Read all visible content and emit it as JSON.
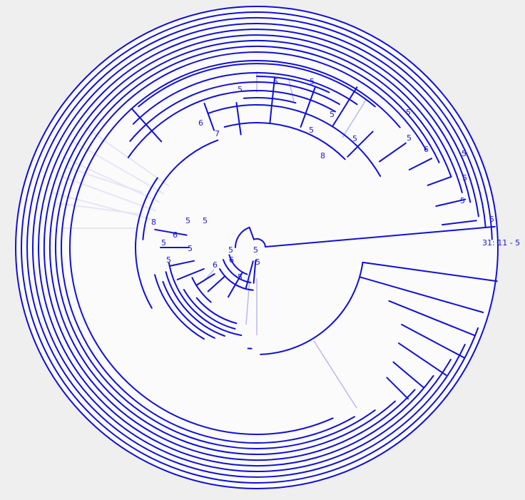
{
  "diagram": {
    "root_label": "31: 11 - 5",
    "colors": {
      "background": "#efefef",
      "disk": "#fbfbfc",
      "edge": "#1010d8",
      "label": "#1a1ad0"
    },
    "node_labels": [
      "5",
      "5",
      "5",
      "5",
      "5",
      "5",
      "5",
      "6",
      "5",
      "5",
      "5",
      "5",
      "6",
      "7",
      "8",
      "5",
      "5",
      "8",
      "5",
      "5",
      "6",
      "5",
      "5",
      "5",
      "6",
      "6",
      "5",
      "5",
      "5"
    ]
  }
}
